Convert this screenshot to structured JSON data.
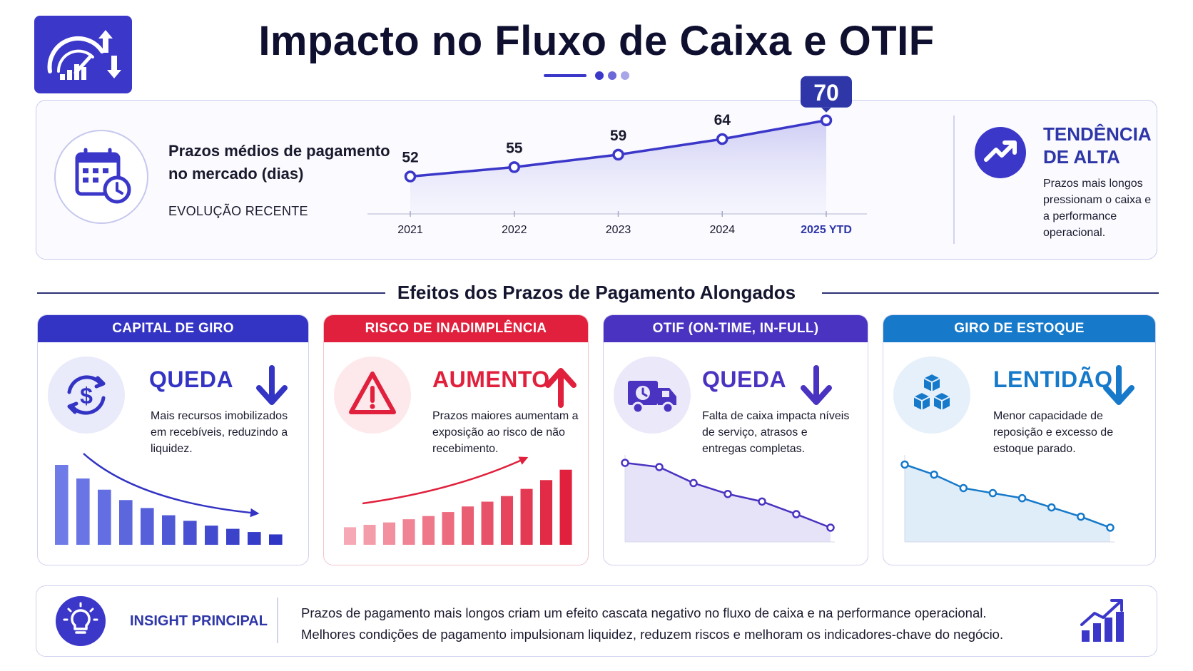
{
  "title": "Impacto no Fluxo de Caixa e OTIF",
  "top": {
    "heading": "Prazos médios de pagamento no mercado (dias)",
    "subheading": "EVOLUÇÃO RECENTE",
    "highlight_label": "70"
  },
  "trend": {
    "title": "TENDÊNCIA DE ALTA",
    "text": "Prazos mais longos pressionam o caixa e a performance operacional."
  },
  "section_title": "Efeitos dos Prazos de Pagamento Alongados",
  "cards": [
    {
      "header": "CAPITAL DE GIRO",
      "status": "QUEDA",
      "text": "Mais recursos imobilizados em recebíveis, reduzindo a liquidez.",
      "color": "#3333c4",
      "icon": "dollar-cycle-icon"
    },
    {
      "header": "RISCO DE INADIMPLÊNCIA",
      "status": "AUMENTO",
      "text": "Prazos maiores aumentam a exposição ao risco de não recebimento.",
      "color": "#e0203c",
      "icon": "warning-icon"
    },
    {
      "header": "OTIF (ON-TIME, IN-FULL)",
      "status": "QUEDA",
      "text": "Falta de caixa impacta níveis de serviço, atrasos e entregas completas.",
      "color": "#4a33c0",
      "icon": "delivery-truck-icon"
    },
    {
      "header": "GIRO DE ESTOQUE",
      "status": "LENTIDÃO",
      "text": "Menor capacidade de reposição e excesso de estoque parado.",
      "color": "#1679c9",
      "icon": "boxes-icon"
    }
  ],
  "insight": {
    "label": "INSIGHT PRINCIPAL",
    "line1": "Prazos de pagamento mais longos criam um efeito cascata negativo no fluxo de caixa e na performance operacional.",
    "line2": "Melhores condições de pagamento impulsionam liquidez, reduzem riscos e melhoram os indicadores-chave do negócio."
  },
  "colors": {
    "primary": "#3b37c9",
    "red": "#e0203c",
    "purple": "#4a33c0",
    "blue": "#1679c9",
    "navy": "#2e36a8"
  },
  "chart_data": [
    {
      "type": "area",
      "title": "Prazos médios de pagamento no mercado (dias)",
      "categories": [
        "2021",
        "2022",
        "2023",
        "2024",
        "2025 YTD"
      ],
      "series": [
        {
          "values": [
            52,
            55,
            59,
            64,
            70
          ]
        }
      ],
      "ylim": [
        40,
        72
      ],
      "grid": false
    },
    {
      "type": "bar",
      "categories": [
        "1",
        "2",
        "3",
        "4",
        "5",
        "6",
        "7",
        "8",
        "9",
        "10",
        "11"
      ],
      "series": [
        {
          "values": [
            100,
            83,
            69,
            56,
            46,
            37,
            30,
            24,
            20,
            16,
            13
          ]
        }
      ],
      "ylim": [
        0,
        100
      ]
    },
    {
      "type": "bar",
      "categories": [
        "1",
        "2",
        "3",
        "4",
        "5",
        "6",
        "7",
        "8",
        "9",
        "10",
        "11",
        "12"
      ],
      "series": [
        {
          "values": [
            22,
            25,
            28,
            32,
            36,
            41,
            48,
            54,
            61,
            70,
            81,
            94
          ]
        }
      ],
      "ylim": [
        0,
        100
      ]
    },
    {
      "type": "line",
      "categories": [
        "1",
        "2",
        "3",
        "4",
        "5",
        "6",
        "7"
      ],
      "series": [
        {
          "values": [
            94,
            89,
            70,
            57,
            48,
            33,
            17
          ]
        }
      ],
      "ylim": [
        0,
        100
      ]
    },
    {
      "type": "line",
      "categories": [
        "1",
        "2",
        "3",
        "4",
        "5",
        "6",
        "7",
        "8"
      ],
      "series": [
        {
          "values": [
            92,
            80,
            64,
            58,
            52,
            41,
            30,
            17
          ]
        }
      ],
      "ylim": [
        0,
        100
      ]
    }
  ]
}
